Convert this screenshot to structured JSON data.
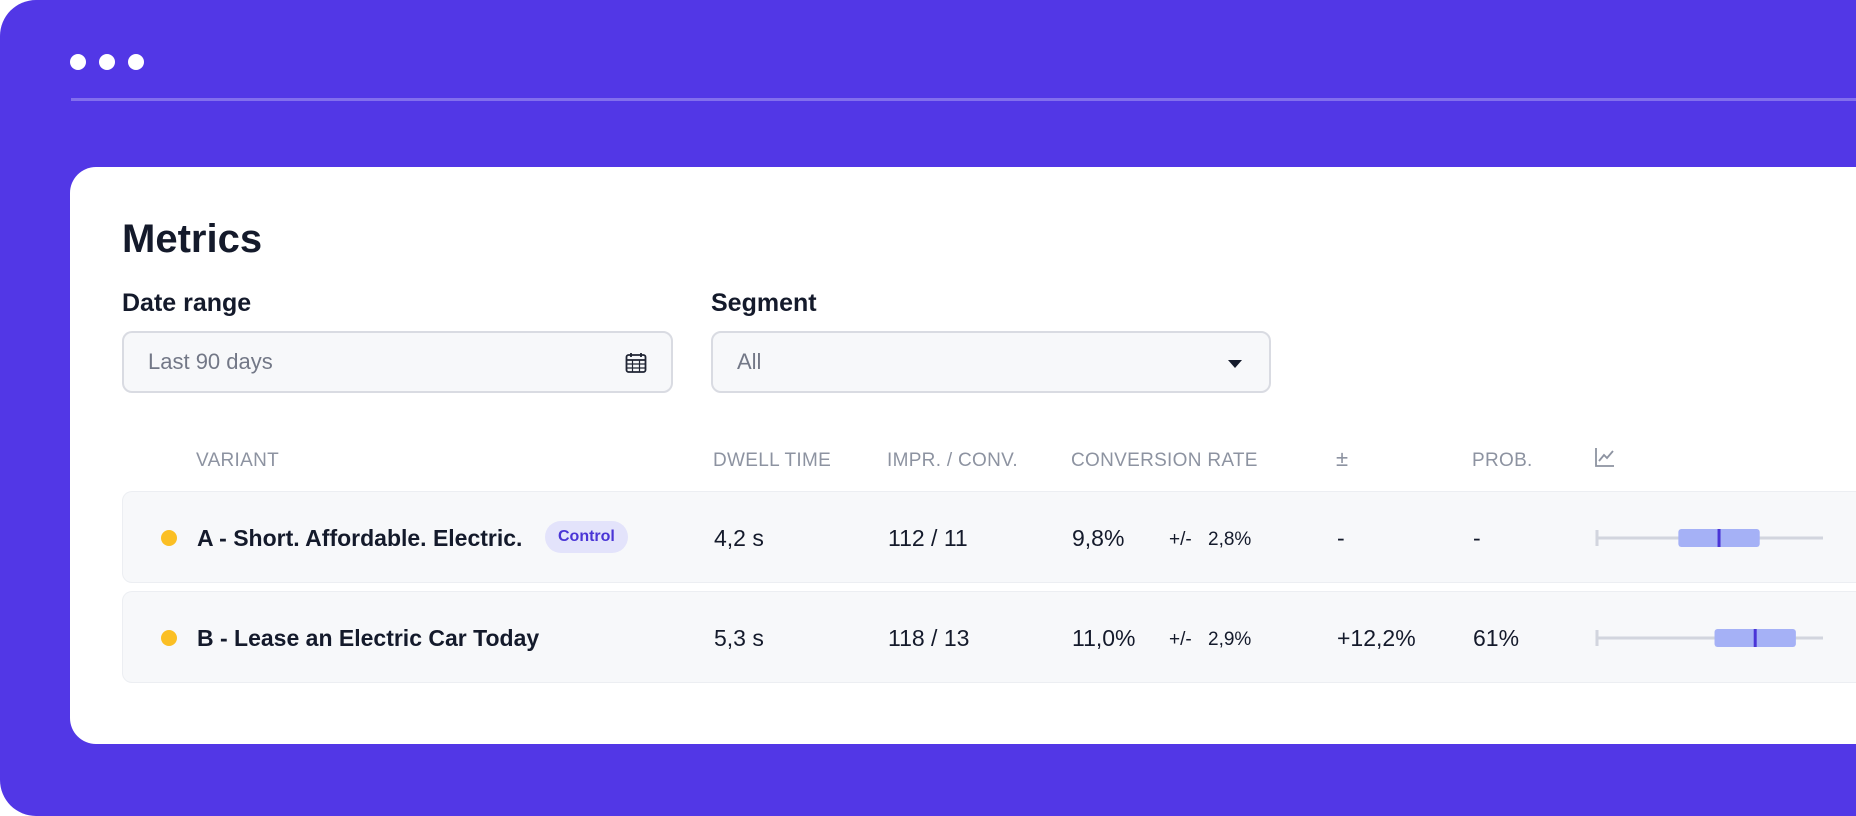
{
  "page": {
    "title": "Metrics",
    "date_range": {
      "label": "Date range",
      "value": "Last 90 days",
      "icon": "calendar-icon"
    },
    "segment": {
      "label": "Segment",
      "value": "All",
      "icon": "caret-down-icon"
    }
  },
  "table": {
    "headers": {
      "variant": "VARIANT",
      "dwell": "DWELL TIME",
      "impr": "IMPR. / CONV.",
      "rate": "CONVERSION RATE",
      "uplift": "±",
      "prob": "PROB.",
      "chart": "chart-icon"
    },
    "rows": [
      {
        "name": "A - Short. Affordable. Electric.",
        "badge": "Control",
        "dwell": "4,2 s",
        "impr": "112 / 11",
        "rate": "9,8%",
        "pm_label": "+/-",
        "pm_value": "2,8%",
        "uplift": "-",
        "prob": "-",
        "dot_color": "#fbbf24",
        "interval": {
          "whisker_low": 0.0,
          "box_low": 0.36,
          "median": 0.54,
          "box_high": 0.72,
          "whisker_high": 1.0
        }
      },
      {
        "name": "B - Lease an Electric Car Today",
        "badge": "",
        "dwell": "5,3 s",
        "impr": "118 / 13",
        "rate": "11,0%",
        "pm_label": "+/-",
        "pm_value": "2,9%",
        "uplift": "+12,2%",
        "prob": "61%",
        "dot_color": "#fbbf24",
        "interval": {
          "whisker_low": 0.0,
          "box_low": 0.52,
          "median": 0.7,
          "box_high": 0.88,
          "whisker_high": 1.0
        }
      }
    ]
  },
  "colors": {
    "brand": "#5237e6",
    "box_fill": "#a5b1f6",
    "median": "#4a35d6",
    "whisker": "#d2d5de"
  }
}
